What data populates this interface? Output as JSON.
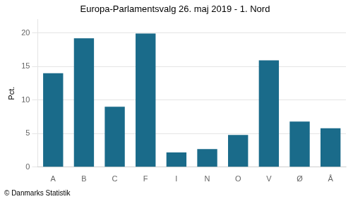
{
  "chart_data": {
    "type": "bar",
    "title": "Europa-Parlamentsvalg 26. maj 2019 - 1. Nord",
    "ylabel": "Pct.",
    "annotations": [
      "© Danmarks Statistik"
    ],
    "categories": [
      "A",
      "B",
      "C",
      "F",
      "I",
      "N",
      "O",
      "V",
      "Ø",
      "Å"
    ],
    "values": [
      14.0,
      19.2,
      9.0,
      19.9,
      2.2,
      2.7,
      4.8,
      15.9,
      6.8,
      5.8
    ],
    "color": "#1a6b8a",
    "ylim": [
      0,
      22
    ],
    "yticks": [
      0,
      5,
      10,
      15,
      20
    ],
    "grid": true
  }
}
